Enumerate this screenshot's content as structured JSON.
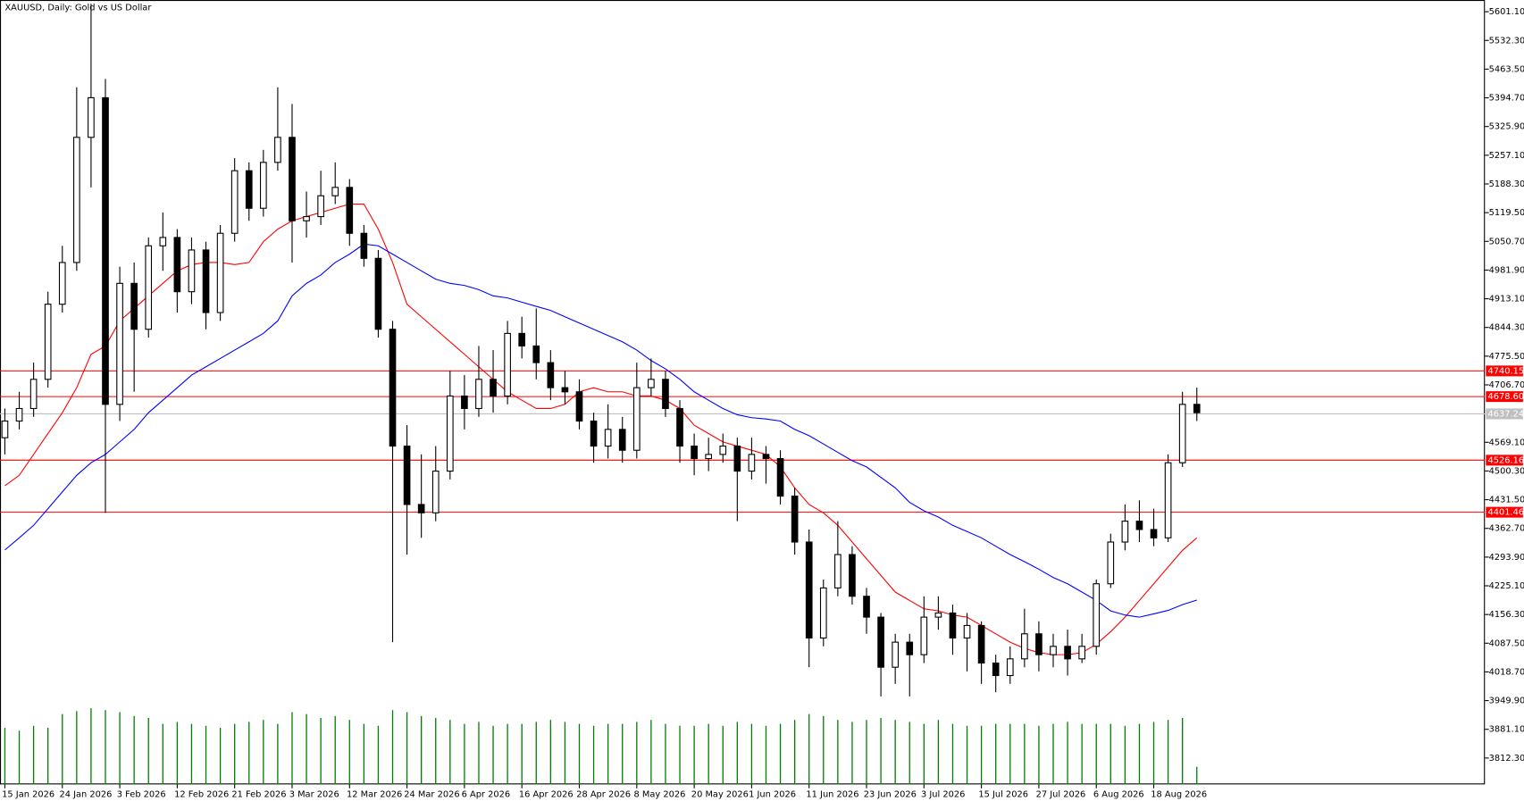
{
  "chart_data": {
    "type": "candlestick",
    "title": "XAUUSD, Daily:  Gold vs US Dollar",
    "categories": [
      "15 Jan 2026",
      null,
      null,
      null,
      "24 Jan 2026",
      null,
      null,
      null,
      "3 Feb 2026",
      null,
      null,
      null,
      "12 Feb 2026",
      null,
      null,
      null,
      "21 Feb 2026",
      null,
      null,
      null,
      "3 Mar 2026",
      null,
      null,
      null,
      "12 Mar 2026",
      null,
      null,
      null,
      "24 Mar 2026",
      null,
      null,
      null,
      "6 Apr 2026",
      null,
      null,
      null,
      "16 Apr 2026",
      null,
      null,
      null,
      "28 Apr 2026",
      null,
      null,
      null,
      "8 May 2026",
      null,
      null,
      null,
      "20 May 2026",
      null,
      null,
      null,
      "1 Jun 2026",
      null,
      null,
      null,
      "11 Jun 2026",
      null,
      null,
      null,
      "23 Jun 2026",
      null,
      null,
      null,
      "3 Jul 2026",
      null,
      null,
      null,
      "15 Jul 2026",
      null,
      null,
      null,
      "27 Jul 2026",
      null,
      null,
      null,
      "6 Aug 2026",
      null,
      null,
      null,
      "18 Aug 2026",
      null,
      null,
      null
    ],
    "open": [
      4580,
      4620,
      4650,
      4720,
      4900,
      5000,
      5300,
      5395,
      4660,
      4950,
      4840,
      5040,
      5060,
      4930,
      5030,
      4880,
      5070,
      5220,
      5130,
      5240,
      5300,
      5100,
      5110,
      5160,
      5180,
      5070,
      5010,
      4840,
      4560,
      4420,
      4400,
      4500,
      4680,
      4650,
      4720,
      4680,
      4830,
      4800,
      4760,
      4700,
      4690,
      4620,
      4560,
      4600,
      4550,
      4700,
      4720,
      4650,
      4560,
      4530,
      4540,
      4560,
      4500,
      4540,
      4530,
      4440,
      4330,
      4100,
      4220,
      4300,
      4200,
      4150,
      4030,
      4090,
      4060,
      4150,
      4160,
      4100,
      4130,
      4040,
      4010,
      4050,
      4110,
      4060,
      4080,
      4050,
      4080,
      4230,
      4330,
      4380,
      4360,
      4340,
      4520,
      4660
    ],
    "high": [
      4650,
      4690,
      4760,
      4930,
      5040,
      5420,
      5620,
      5440,
      4990,
      5000,
      5060,
      5120,
      5080,
      5060,
      5050,
      5090,
      5250,
      5240,
      5270,
      5420,
      5380,
      5170,
      5220,
      5240,
      5200,
      5090,
      5030,
      4860,
      4610,
      4540,
      4560,
      4740,
      4730,
      4800,
      4790,
      4860,
      4870,
      4890,
      4790,
      4740,
      4720,
      4640,
      4660,
      4630,
      4760,
      4770,
      4740,
      4670,
      4590,
      4580,
      4590,
      4580,
      4580,
      4560,
      4550,
      4460,
      4360,
      4240,
      4380,
      4320,
      4220,
      4160,
      4110,
      4110,
      4200,
      4200,
      4180,
      4160,
      4140,
      4060,
      4080,
      4170,
      4140,
      4110,
      4120,
      4110,
      4240,
      4350,
      4420,
      4430,
      4410,
      4540,
      4690,
      4700
    ],
    "low": [
      4540,
      4600,
      4630,
      4700,
      4880,
      4980,
      5180,
      4400,
      4620,
      4690,
      4820,
      4980,
      4880,
      4900,
      4840,
      4860,
      5050,
      5100,
      5110,
      5220,
      5000,
      5060,
      5090,
      5140,
      5040,
      4990,
      4820,
      4090,
      4300,
      4340,
      4380,
      4480,
      4600,
      4630,
      4640,
      4660,
      4770,
      4720,
      4670,
      4660,
      4600,
      4520,
      4530,
      4520,
      4530,
      4680,
      4630,
      4520,
      4490,
      4500,
      4520,
      4380,
      4480,
      4470,
      4420,
      4300,
      4030,
      4080,
      4200,
      4180,
      4110,
      3960,
      3990,
      3960,
      4040,
      4120,
      4060,
      4020,
      3990,
      3970,
      3990,
      4030,
      4020,
      4030,
      4010,
      4040,
      4060,
      4220,
      4310,
      4330,
      4320,
      4330,
      4510,
      4620
    ],
    "close": [
      4620,
      4650,
      4720,
      4900,
      5000,
      5300,
      5395,
      4660,
      4950,
      4840,
      5040,
      5060,
      4930,
      5030,
      4880,
      5070,
      5220,
      5130,
      5240,
      5300,
      5100,
      5110,
      5160,
      5180,
      5070,
      5010,
      4840,
      4560,
      4420,
      4400,
      4500,
      4680,
      4650,
      4720,
      4680,
      4830,
      4800,
      4760,
      4700,
      4690,
      4620,
      4560,
      4600,
      4550,
      4700,
      4720,
      4650,
      4560,
      4530,
      4540,
      4560,
      4500,
      4540,
      4530,
      4440,
      4330,
      4100,
      4220,
      4300,
      4200,
      4150,
      4030,
      4090,
      4060,
      4150,
      4160,
      4100,
      4130,
      4040,
      4010,
      4050,
      4110,
      4060,
      4080,
      4050,
      4080,
      4230,
      4330,
      4380,
      4360,
      4340,
      4520,
      4660,
      4640
    ],
    "series": [
      {
        "color": "#ff0000",
        "values": [
          4465,
          4490,
          4540,
          4590,
          4640,
          4700,
          4780,
          4800,
          4860,
          4890,
          4920,
          4950,
          4980,
          4995,
          5000,
          5000,
          4995,
          5000,
          5050,
          5080,
          5100,
          5110,
          5120,
          5130,
          5140,
          5140,
          5080,
          5000,
          4900,
          4870,
          4840,
          4810,
          4780,
          4750,
          4720,
          4690,
          4670,
          4650,
          4650,
          4660,
          4690,
          4700,
          4690,
          4690,
          4680,
          4680,
          4670,
          4650,
          4610,
          4590,
          4570,
          4560,
          4550,
          4540,
          4510,
          4460,
          4420,
          4400,
          4370,
          4330,
          4290,
          4250,
          4210,
          4190,
          4170,
          4165,
          4155,
          4150,
          4130,
          4110,
          4090,
          4075,
          4065,
          4060,
          4060,
          4065,
          4085,
          4115,
          4150,
          4190,
          4230,
          4270,
          4310,
          4340
        ]
      },
      {
        "color": "#0000ff",
        "values": [
          4311,
          4340,
          4370,
          4410,
          4450,
          4490,
          4520,
          4540,
          4570,
          4600,
          4640,
          4670,
          4700,
          4730,
          4750,
          4770,
          4790,
          4810,
          4830,
          4860,
          4920,
          4950,
          4970,
          5000,
          5020,
          5044,
          5040,
          5020,
          5000,
          4980,
          4960,
          4950,
          4945,
          4935,
          4920,
          4915,
          4905,
          4895,
          4885,
          4870,
          4855,
          4840,
          4825,
          4810,
          4790,
          4765,
          4745,
          4720,
          4690,
          4670,
          4650,
          4635,
          4628,
          4625,
          4620,
          4600,
          4585,
          4565,
          4545,
          4525,
          4510,
          4485,
          4460,
          4425,
          4405,
          4390,
          4370,
          4355,
          4340,
          4320,
          4300,
          4283,
          4265,
          4245,
          4230,
          4210,
          4190,
          4165,
          4155,
          4150,
          4158,
          4166,
          4180,
          4191
        ]
      }
    ],
    "volume": [
      58,
      55,
      60,
      58,
      72,
      75,
      78,
      76,
      74,
      70,
      68,
      62,
      64,
      62,
      60,
      58,
      62,
      64,
      66,
      62,
      74,
      72,
      68,
      70,
      66,
      62,
      60,
      76,
      74,
      70,
      68,
      66,
      62,
      64,
      60,
      62,
      62,
      64,
      66,
      64,
      62,
      60,
      62,
      62,
      64,
      66,
      62,
      60,
      60,
      62,
      60,
      64,
      62,
      60,
      62,
      66,
      72,
      70,
      66,
      64,
      66,
      68,
      66,
      64,
      62,
      66,
      62,
      60,
      60,
      62,
      62,
      62,
      60,
      62,
      64,
      62,
      62,
      62,
      60,
      62,
      64,
      66,
      68,
      18
    ],
    "volume_color": "#008000",
    "ylim": [
      3749.1,
      5624.5
    ],
    "yticks": [
      {
        "value": 5601.1,
        "label": "5601.10"
      },
      {
        "value": 5532.3,
        "label": "5532.30"
      },
      {
        "value": 5463.5,
        "label": "5463.50"
      },
      {
        "value": 5394.7,
        "label": "5394.70"
      },
      {
        "value": 5325.9,
        "label": "5325.90"
      },
      {
        "value": 5257.1,
        "label": "5257.10"
      },
      {
        "value": 5188.3,
        "label": "5188.30"
      },
      {
        "value": 5119.5,
        "label": "5119.50"
      },
      {
        "value": 5050.7,
        "label": "5050.70"
      },
      {
        "value": 4981.9,
        "label": "4981.90"
      },
      {
        "value": 4913.1,
        "label": "4913.10"
      },
      {
        "value": 4844.3,
        "label": "4844.30"
      },
      {
        "value": 4775.5,
        "label": "4775.50"
      },
      {
        "value": 4706.7,
        "label": "4706.70"
      },
      {
        "value": 4569.1,
        "label": "4569.10"
      },
      {
        "value": 4500.3,
        "label": "4500.30"
      },
      {
        "value": 4431.5,
        "label": "4431.50"
      },
      {
        "value": 4362.7,
        "label": "4362.70"
      },
      {
        "value": 4293.9,
        "label": "4293.90"
      },
      {
        "value": 4225.1,
        "label": "4225.10"
      },
      {
        "value": 4156.3,
        "label": "4156.30"
      },
      {
        "value": 4087.5,
        "label": "4087.50"
      },
      {
        "value": 4018.7,
        "label": "4018.70"
      },
      {
        "value": 3949.9,
        "label": "3949.90"
      },
      {
        "value": 3881.1,
        "label": "3881.10"
      },
      {
        "value": 3812.3,
        "label": "3812.30"
      }
    ],
    "levels": [
      4740.15,
      {
        "value": 4678.6,
        "label": "4678.60"
      },
      4526.16,
      4401.46
    ],
    "level_color": "#ff0000",
    "last_price": 4637.24,
    "last_price_color": "#c0c0c0"
  }
}
